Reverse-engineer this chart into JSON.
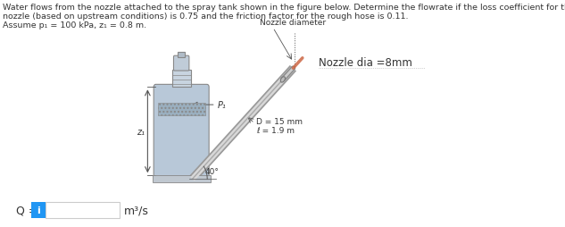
{
  "title_line1": "Water flows from the nozzle attached to the spray tank shown in the figure below. Determine the flowrate if the loss coefficient for the",
  "title_line2": "nozzle (based on upstream conditions) is 0.75 and the friction factor for the rough hose is 0.11.",
  "title_line3": "Assume p₁ = 100 kPa, z₁ = 0.8 m.",
  "nozzle_diameter_label": "Nozzle diameter",
  "nozzle_dia_label": "Nozzle dia =8mm",
  "hose_label_D": "D = 15 mm",
  "hose_label_l": "ℓ = 1.9 m",
  "angle_label": "40°",
  "p1_label": "P₁",
  "z1_label": "z₁",
  "Q_label": "Q =",
  "units_label": "m³/s",
  "bg_color": "#ffffff",
  "tank_fill_color": "#b8c8d8",
  "tank_border_color": "#888888",
  "hatch_color": "#9aafbf",
  "info_icon_color": "#2196F3",
  "text_color": "#333333",
  "hose_outer_color": "#aaaaaa",
  "hose_inner_color": "#dddddd",
  "spray_color": "#cc6644"
}
